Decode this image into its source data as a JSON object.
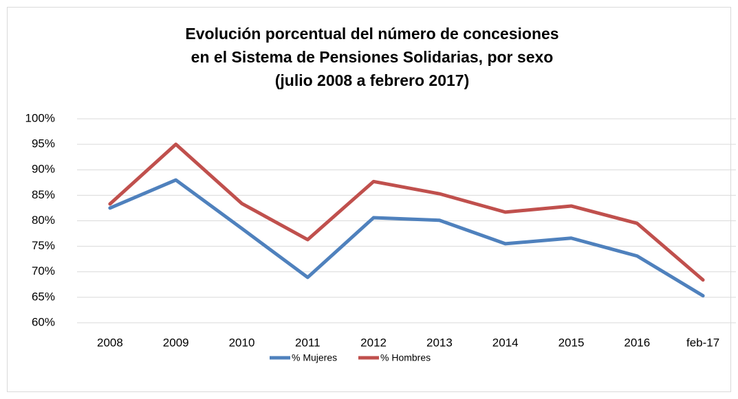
{
  "chart_data": {
    "type": "line",
    "title": [
      "Evolución porcentual del número de concesiones",
      "en el Sistema de Pensiones Solidarias, por sexo",
      "(julio 2008 a febrero 2017)"
    ],
    "categories": [
      "2008",
      "2009",
      "2010",
      "2011",
      "2012",
      "2013",
      "2014",
      "2015",
      "2016",
      "feb-17"
    ],
    "series": [
      {
        "name": "% Mujeres",
        "color": "#4f81bd",
        "values": [
          82.5,
          88.0,
          78.5,
          68.9,
          80.6,
          80.1,
          75.5,
          76.6,
          73.1,
          65.3
        ]
      },
      {
        "name": "% Hombres",
        "color": "#c0504d",
        "values": [
          83.3,
          95.0,
          83.4,
          76.3,
          87.7,
          85.3,
          81.7,
          82.9,
          79.5,
          68.4
        ]
      }
    ],
    "ylim": [
      60,
      100
    ],
    "yticks": [
      {
        "value": 60,
        "label": "60%"
      },
      {
        "value": 65,
        "label": "65%"
      },
      {
        "value": 70,
        "label": "70%"
      },
      {
        "value": 75,
        "label": "75%"
      },
      {
        "value": 80,
        "label": "80%"
      },
      {
        "value": 85,
        "label": "85%"
      },
      {
        "value": 90,
        "label": "90%"
      },
      {
        "value": 95,
        "label": "95%"
      },
      {
        "value": 100,
        "label": "100%"
      }
    ],
    "grid": true,
    "legend": "bottom"
  }
}
